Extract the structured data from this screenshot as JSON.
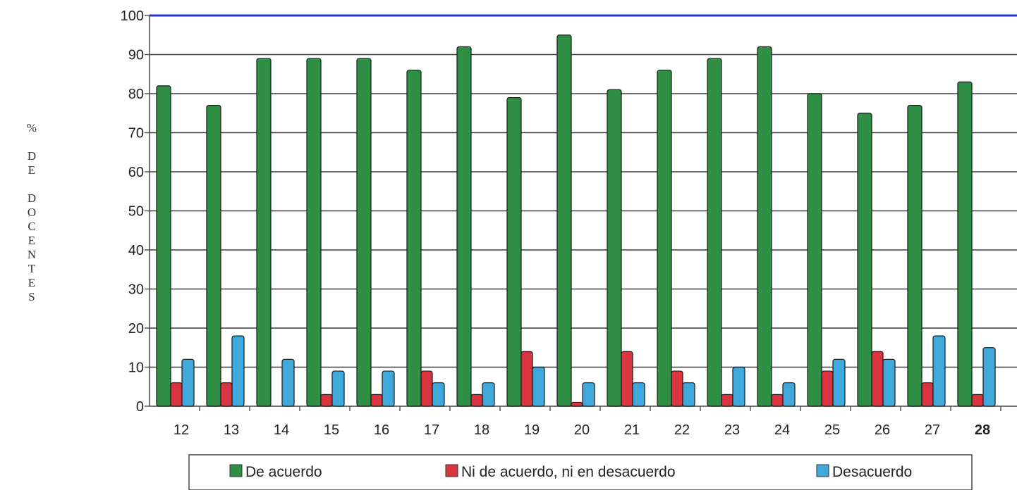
{
  "chart_data": {
    "type": "bar",
    "ylabel": "% DE DOCENTES",
    "categories": [
      "12",
      "13",
      "14",
      "15",
      "16",
      "17",
      "18",
      "19",
      "20",
      "21",
      "22",
      "23",
      "24",
      "25",
      "26",
      "27",
      "28"
    ],
    "series": [
      {
        "name": "De acuerdo",
        "color": "#2f8f45",
        "values": [
          82,
          77,
          89,
          89,
          89,
          86,
          92,
          79,
          95,
          81,
          86,
          89,
          92,
          80,
          75,
          77,
          83
        ]
      },
      {
        "name": "Ni de acuerdo, ni en desacuerdo",
        "color": "#d9343f",
        "values": [
          6,
          6,
          0,
          3,
          3,
          9,
          3,
          14,
          1,
          14,
          9,
          3,
          3,
          9,
          14,
          6,
          3
        ]
      },
      {
        "name": "Desacuerdo",
        "color": "#3fa9dc",
        "values": [
          12,
          18,
          12,
          9,
          9,
          6,
          6,
          10,
          6,
          6,
          6,
          10,
          6,
          12,
          12,
          18,
          15
        ]
      }
    ],
    "ylim": [
      0,
      100
    ],
    "yticks": [
      0,
      10,
      20,
      30,
      40,
      50,
      60,
      70,
      80,
      90,
      100
    ],
    "grid": true,
    "legend_position": "bottom"
  }
}
